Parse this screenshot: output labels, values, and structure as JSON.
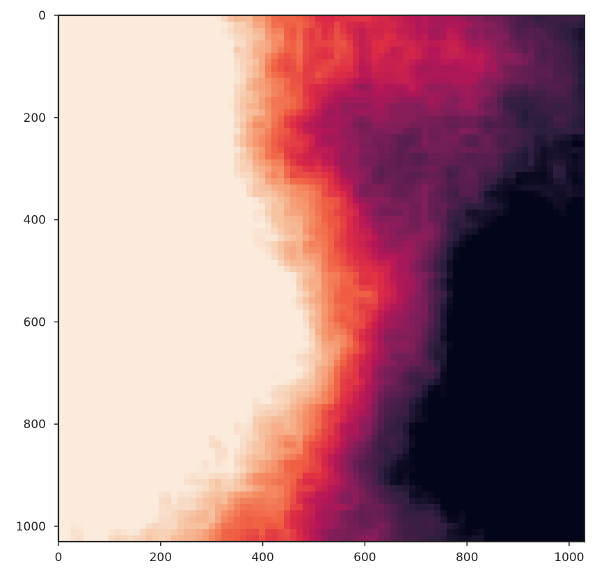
{
  "chart_data": {
    "type": "heatmap",
    "title": "",
    "xlabel": "",
    "ylabel": "",
    "colormap": "rocket",
    "colors": {
      "axes_frame": "#262626",
      "tick_text": "#262626",
      "background": "#ffffff",
      "ramp": [
        "#03051a",
        "#2c1e3e",
        "#571e4f",
        "#841e5a",
        "#b41658",
        "#dd2c45",
        "#f06043",
        "#f5936a",
        "#f6c19f",
        "#faebdd"
      ]
    },
    "xlim": [
      0,
      1030
    ],
    "ylim": [
      1030,
      0
    ],
    "x_ticks": [
      0,
      200,
      400,
      600,
      800,
      1000
    ],
    "y_ticks": [
      0,
      200,
      400,
      600,
      800,
      1000
    ],
    "x_tick_labels": [
      "0",
      "200",
      "400",
      "600",
      "800",
      "1000"
    ],
    "y_tick_labels": [
      "0",
      "200",
      "400",
      "600",
      "800",
      "1000"
    ],
    "grid": false,
    "legend": "none",
    "value_range": [
      0,
      1
    ],
    "peaks": [
      {
        "x": 20,
        "y": 200,
        "value": 0.95
      },
      {
        "x": 20,
        "y": 420,
        "value": 1.0
      },
      {
        "x": 90,
        "y": 520,
        "value": 0.85
      },
      {
        "x": 200,
        "y": 40,
        "value": 0.78
      },
      {
        "x": 250,
        "y": 560,
        "value": 0.72
      },
      {
        "x": 60,
        "y": 920,
        "value": 0.75
      },
      {
        "x": 470,
        "y": 780,
        "value": 0.6
      },
      {
        "x": 500,
        "y": 380,
        "value": 0.55
      },
      {
        "x": 700,
        "y": 30,
        "value": 0.45
      }
    ],
    "valleys": [
      {
        "x": 950,
        "y": 680,
        "value": 0.02
      },
      {
        "x": 880,
        "y": 520,
        "value": 0.05
      },
      {
        "x": 580,
        "y": 250,
        "value": 0.12
      },
      {
        "x": 1000,
        "y": 950,
        "value": 0.05
      },
      {
        "x": 700,
        "y": 850,
        "value": 0.15
      }
    ]
  }
}
